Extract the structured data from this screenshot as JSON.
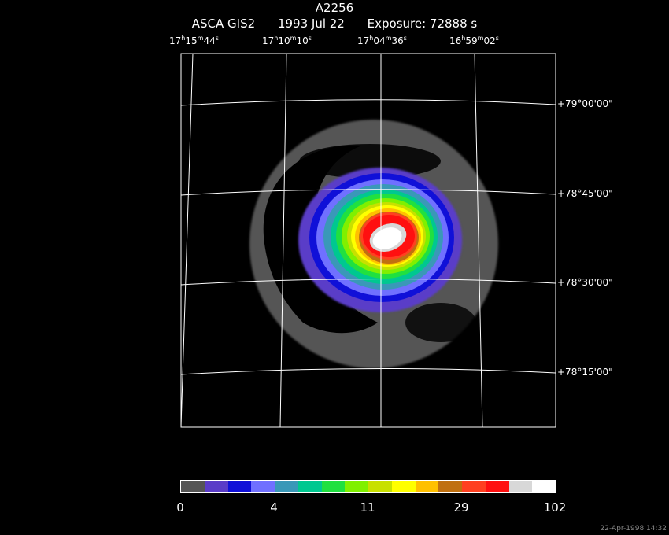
{
  "header": {
    "object": "A2256",
    "instrument": "ASCA GIS2",
    "date": "1993 Jul 22",
    "exposure": "Exposure: 72888 s"
  },
  "ra_labels": [
    {
      "h": "17",
      "m": "15",
      "s": "44"
    },
    {
      "h": "17",
      "m": "10",
      "s": "10"
    },
    {
      "h": "17",
      "m": "04",
      "s": "36"
    },
    {
      "h": "16",
      "m": "59",
      "s": "02"
    }
  ],
  "dec_labels": [
    "+79°00'00\"",
    "+78°45'00\"",
    "+78°30'00\"",
    "+78°15'00\""
  ],
  "colorbar": {
    "colors": [
      "#555555",
      "#5a3cc8",
      "#1010d8",
      "#7070ff",
      "#3a98b8",
      "#00c890",
      "#20e040",
      "#80f000",
      "#c8e000",
      "#ffff00",
      "#ffc000",
      "#c07010",
      "#ff4020",
      "#ff1010",
      "#d8d8d8",
      "#ffffff"
    ],
    "ticks": [
      "0",
      "4",
      "11",
      "29",
      "102"
    ]
  },
  "timestamp": "22-Apr-1998 14:32"
}
